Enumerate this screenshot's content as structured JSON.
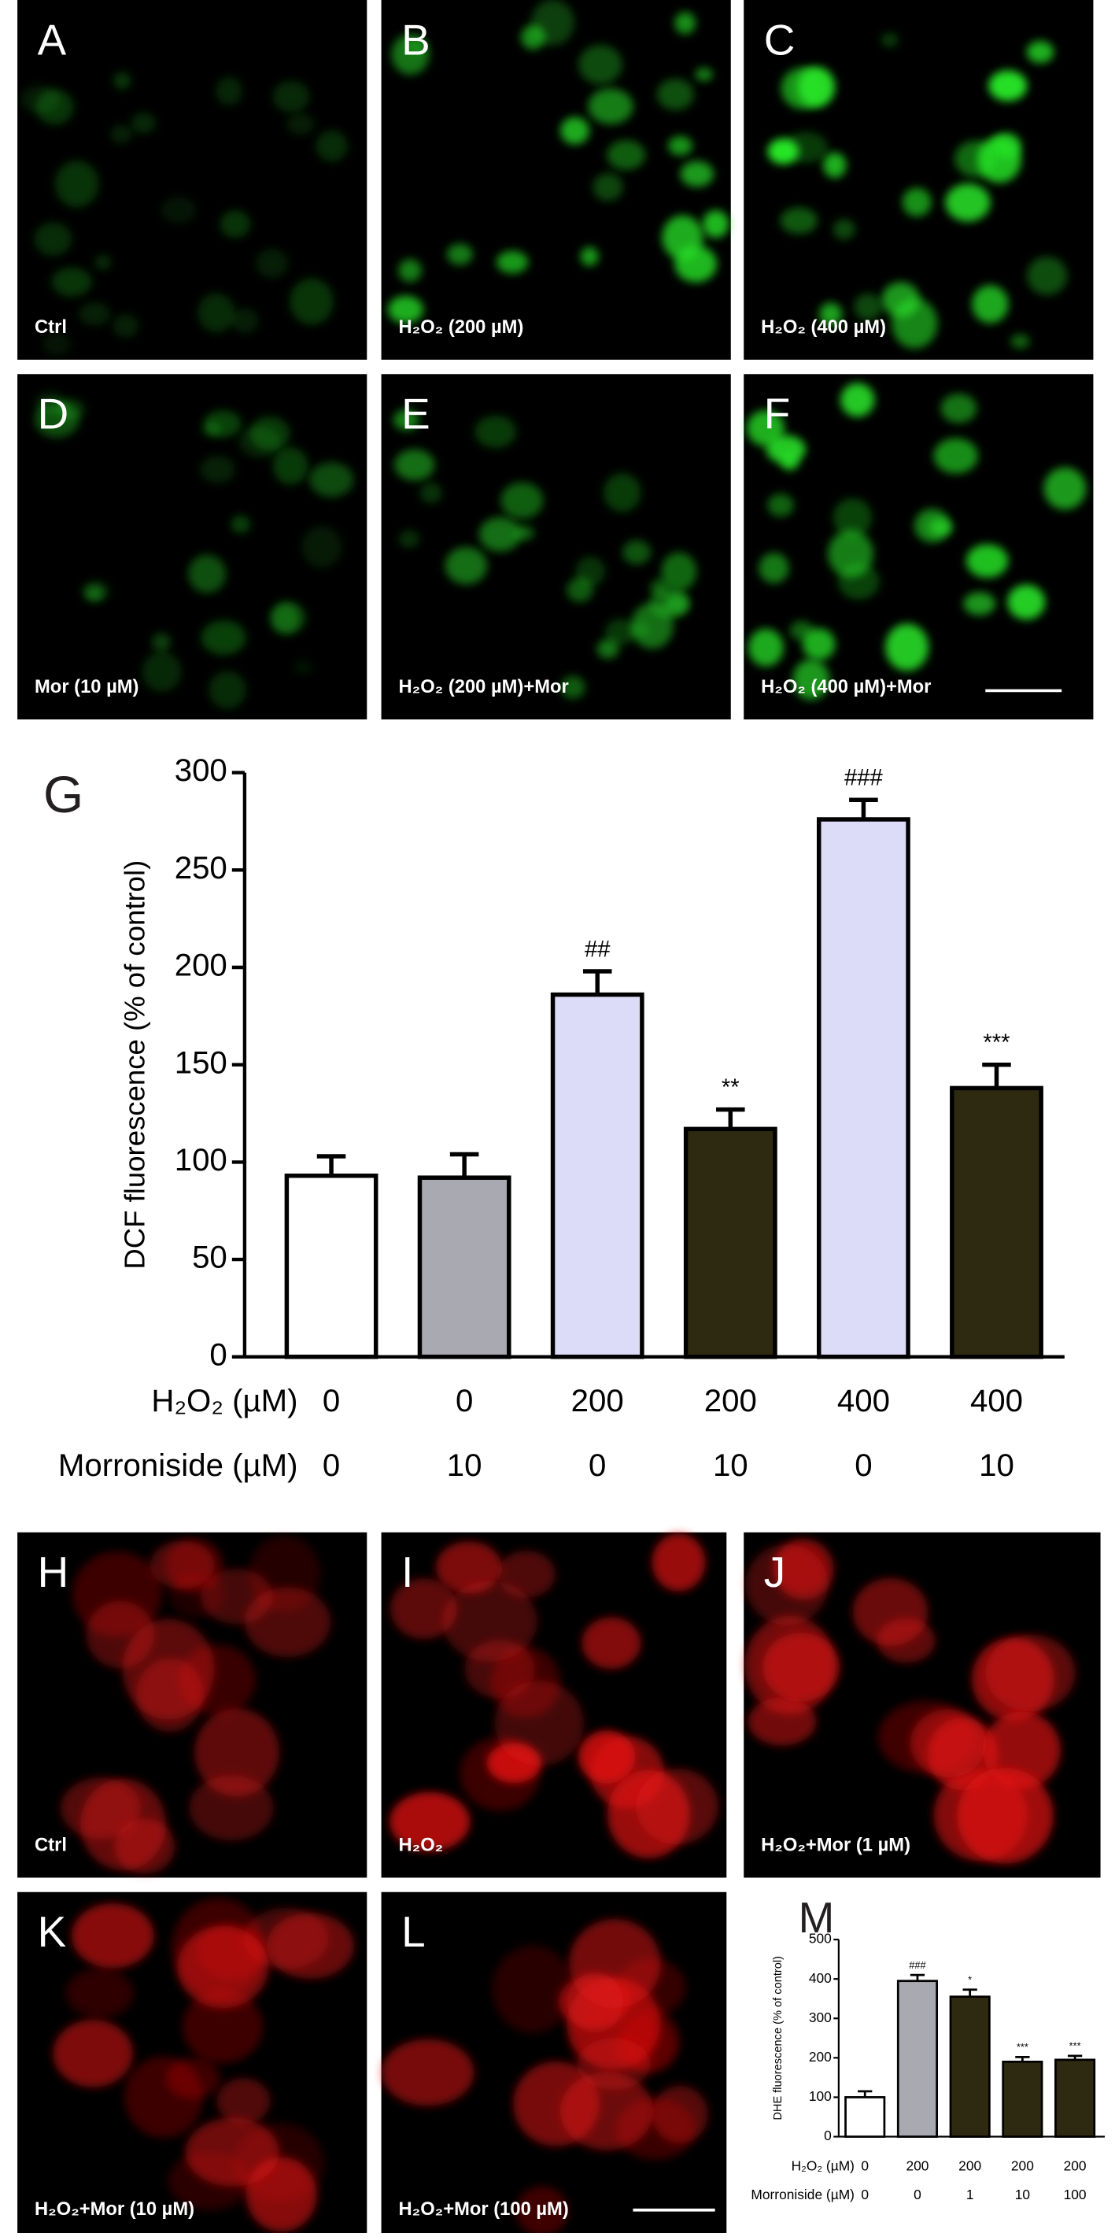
{
  "panels": [
    {
      "letter": "A",
      "caption": "Ctrl"
    },
    {
      "letter": "B",
      "caption": "H₂O₂ (200 µM)"
    },
    {
      "letter": "C",
      "caption": "H₂O₂ (400 µM)"
    },
    {
      "letter": "D",
      "caption": "Mor (10 µM)"
    },
    {
      "letter": "E",
      "caption": "H₂O₂ (200 µM)+Mor"
    },
    {
      "letter": "F",
      "caption": "H₂O₂ (400 µM)+Mor"
    },
    {
      "letter": "H",
      "caption": "Ctrl"
    },
    {
      "letter": "I",
      "caption": "H₂O₂"
    },
    {
      "letter": "J",
      "caption": "H₂O₂+Mor (1 µM)"
    },
    {
      "letter": "K",
      "caption": "H₂O₂+Mor (10 µM)"
    },
    {
      "letter": "L",
      "caption": "H₂O₂+Mor (100 µM)"
    }
  ],
  "chart_data": [
    {
      "type": "bar",
      "panel_label": "G",
      "y_label": "DCF fluorescence (% of control)",
      "ylim": [
        0,
        300
      ],
      "yticks": [
        0,
        50,
        100,
        150,
        200,
        250,
        300
      ],
      "x_label_rows": [
        {
          "name": "H₂O₂ (µM)",
          "labels": [
            0,
            0,
            200,
            200,
            400,
            400
          ]
        },
        {
          "name": "Morroniside (µM)",
          "labels": [
            0,
            10,
            0,
            10,
            0,
            10
          ]
        }
      ],
      "series": [
        {
          "values": [
            93,
            92,
            186,
            117,
            276,
            138
          ],
          "errors": [
            10,
            12,
            12,
            10,
            10,
            12
          ],
          "colors": [
            "#ffffff",
            "#a9a9b1",
            "#dcdcf8",
            "#2e2a12",
            "#dcdcf8",
            "#2e2a12"
          ],
          "annotations": [
            null,
            null,
            "##",
            "**",
            "###",
            "***"
          ]
        }
      ]
    },
    {
      "type": "bar",
      "panel_label": "M",
      "y_label": "DHE fluorescence (% of control)",
      "ylim": [
        0,
        500
      ],
      "yticks": [
        0,
        100,
        200,
        300,
        400,
        500
      ],
      "x_label_rows": [
        {
          "name": "H₂O₂ (µM)",
          "labels": [
            0,
            200,
            200,
            200,
            200
          ]
        },
        {
          "name": "Morroniside (µM)",
          "labels": [
            0,
            0,
            1,
            10,
            100
          ]
        }
      ],
      "series": [
        {
          "values": [
            100,
            395,
            355,
            190,
            195
          ],
          "errors": [
            15,
            15,
            18,
            12,
            10
          ],
          "colors": [
            "#ffffff",
            "#a9a9b1",
            "#2e2a12",
            "#2e2a12",
            "#2e2a12"
          ],
          "annotations": [
            null,
            "###",
            "*",
            "***",
            "***"
          ]
        }
      ]
    }
  ]
}
